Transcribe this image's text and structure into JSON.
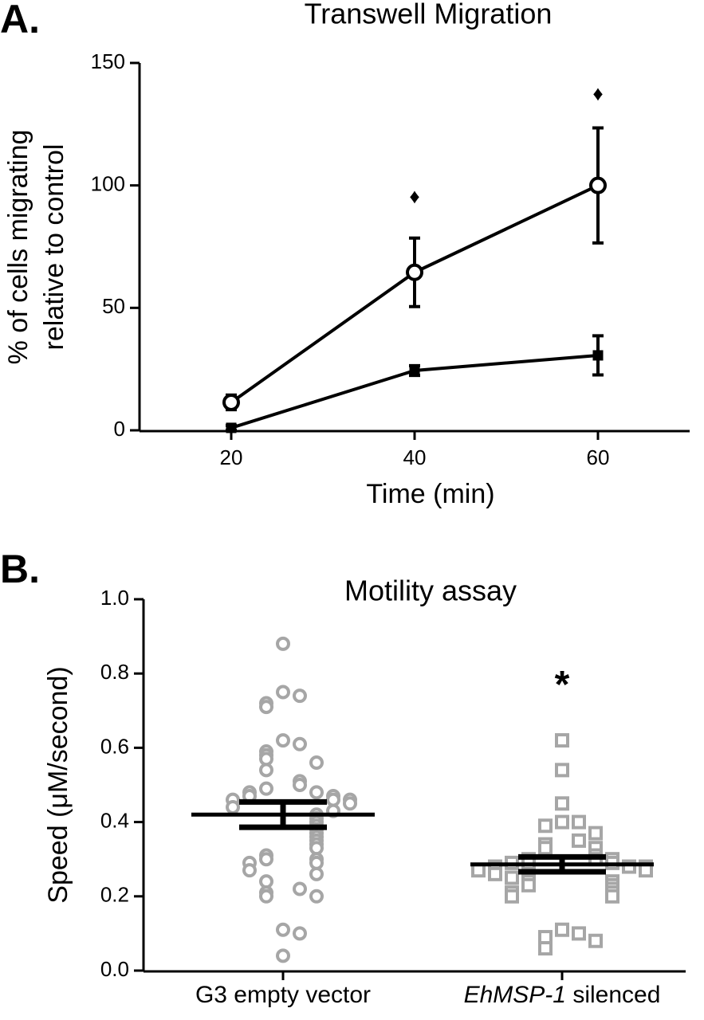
{
  "chart_data": [
    {
      "type": "line",
      "panel_label": "A.",
      "title": "Transwell Migration",
      "xlabel": "Time (min)",
      "ylabel": [
        "% of cells migrating",
        "relative to control"
      ],
      "x": [
        20,
        40,
        60
      ],
      "series": [
        {
          "marker": "open-circle",
          "color": "#000000",
          "values": [
            11.4,
            64.5,
            100
          ],
          "errors": [
            3,
            14,
            23.5
          ]
        },
        {
          "marker": "filled-square",
          "color": "#000000",
          "values": [
            1,
            24.4,
            30.6
          ],
          "errors": [
            1,
            2,
            8
          ]
        }
      ],
      "annotations": [
        {
          "text": "♦",
          "x": 40,
          "y": 95
        },
        {
          "text": "♦",
          "x": 60,
          "y": 137
        }
      ],
      "xlim": [
        10,
        70
      ],
      "xticks": [
        20,
        40,
        60
      ],
      "ylim": [
        0,
        150
      ],
      "yticks": [
        0,
        50,
        100,
        150
      ]
    },
    {
      "type": "strip",
      "panel_label": "B.",
      "title": "Motility assay",
      "ylabel": "Speed (μM/second)",
      "categories": [
        "G3 empty vector",
        "EhMSP-1 silenced"
      ],
      "category_italic_words": [
        0,
        1
      ],
      "series": [
        {
          "marker": "open-circle",
          "color": "#a6a6a6",
          "values": [
            0.88,
            0.75,
            0.74,
            0.72,
            0.71,
            0.62,
            0.61,
            0.59,
            0.58,
            0.57,
            0.56,
            0.54,
            0.51,
            0.5,
            0.49,
            0.48,
            0.48,
            0.47,
            0.47,
            0.46,
            0.46,
            0.46,
            0.45,
            0.44,
            0.43,
            0.42,
            0.41,
            0.4,
            0.39,
            0.38,
            0.37,
            0.36,
            0.35,
            0.34,
            0.33,
            0.31,
            0.3,
            0.3,
            0.29,
            0.29,
            0.27,
            0.26,
            0.24,
            0.22,
            0.21,
            0.2,
            0.2,
            0.11,
            0.1,
            0.04
          ]
        },
        {
          "marker": "open-square",
          "color": "#a6a6a6",
          "values": [
            0.62,
            0.54,
            0.45,
            0.4,
            0.4,
            0.39,
            0.37,
            0.35,
            0.34,
            0.33,
            0.33,
            0.31,
            0.3,
            0.3,
            0.3,
            0.29,
            0.29,
            0.29,
            0.28,
            0.28,
            0.28,
            0.27,
            0.27,
            0.26,
            0.25,
            0.24,
            0.24,
            0.23,
            0.23,
            0.22,
            0.21,
            0.21,
            0.2,
            0.2,
            0.11,
            0.1,
            0.09,
            0.08,
            0.06
          ]
        }
      ],
      "means": [
        0.42,
        0.286
      ],
      "sems": [
        0.034,
        0.02
      ],
      "mean_color": "#000000",
      "annotations": [
        {
          "text": "*",
          "category": 1,
          "y": 0.78
        }
      ],
      "ylim": [
        0,
        1.0
      ],
      "yticks": [
        {
          "value": 0,
          "label": "0.0"
        },
        {
          "value": 0.2,
          "label": "0.2"
        },
        {
          "value": 0.4,
          "label": "0.4"
        },
        {
          "value": 0.6,
          "label": "0.6"
        },
        {
          "value": 0.8,
          "label": "0.8"
        },
        {
          "value": 1.0,
          "label": "1.0"
        }
      ]
    }
  ]
}
